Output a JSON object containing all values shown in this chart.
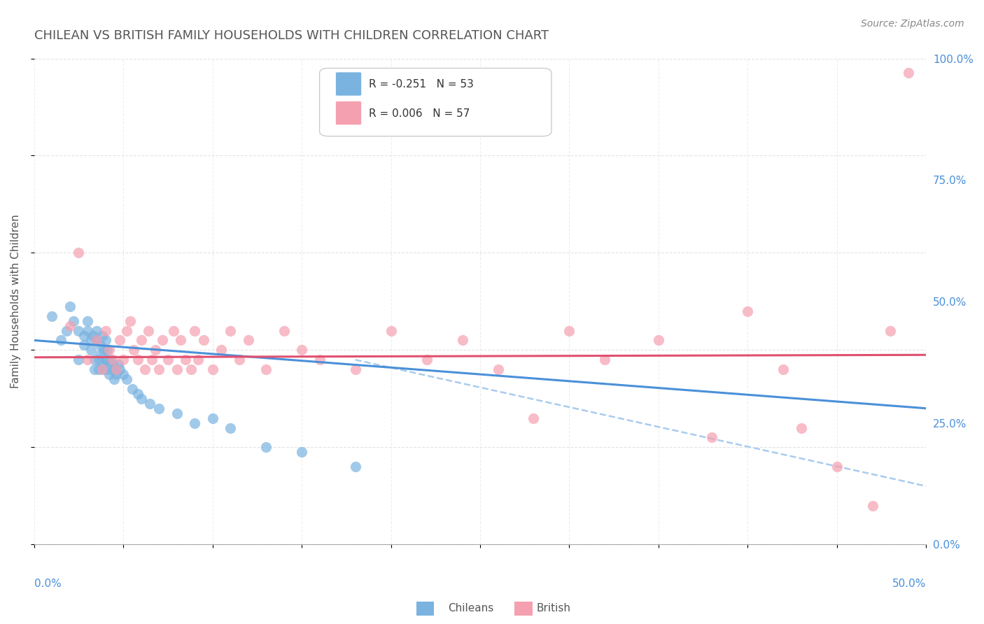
{
  "title": "CHILEAN VS BRITISH FAMILY HOUSEHOLDS WITH CHILDREN CORRELATION CHART",
  "source": "Source: ZipAtlas.com",
  "ylabel_ticks": [
    "0.0%",
    "25.0%",
    "50.0%",
    "75.0%",
    "100.0%"
  ],
  "ylabel_label": "Family Households with Children",
  "legend_r_blue": "R = -0.251",
  "legend_n_blue": "N = 53",
  "legend_r_pink": "R = 0.006",
  "legend_n_pink": "N = 57",
  "blue_scatter_x": [
    0.01,
    0.015,
    0.018,
    0.02,
    0.022,
    0.025,
    0.025,
    0.028,
    0.028,
    0.03,
    0.03,
    0.032,
    0.032,
    0.033,
    0.034,
    0.034,
    0.035,
    0.035,
    0.036,
    0.036,
    0.037,
    0.037,
    0.038,
    0.038,
    0.039,
    0.039,
    0.04,
    0.04,
    0.041,
    0.041,
    0.042,
    0.042,
    0.043,
    0.044,
    0.045,
    0.045,
    0.046,
    0.047,
    0.048,
    0.05,
    0.052,
    0.055,
    0.058,
    0.06,
    0.065,
    0.07,
    0.08,
    0.09,
    0.1,
    0.11,
    0.13,
    0.15,
    0.18
  ],
  "blue_scatter_y": [
    0.47,
    0.42,
    0.44,
    0.49,
    0.46,
    0.44,
    0.38,
    0.43,
    0.41,
    0.46,
    0.44,
    0.42,
    0.4,
    0.43,
    0.38,
    0.36,
    0.44,
    0.42,
    0.38,
    0.36,
    0.41,
    0.39,
    0.43,
    0.37,
    0.4,
    0.36,
    0.42,
    0.38,
    0.4,
    0.38,
    0.36,
    0.35,
    0.38,
    0.37,
    0.36,
    0.34,
    0.35,
    0.37,
    0.36,
    0.35,
    0.34,
    0.32,
    0.31,
    0.3,
    0.29,
    0.28,
    0.27,
    0.25,
    0.26,
    0.24,
    0.2,
    0.19,
    0.16
  ],
  "pink_scatter_x": [
    0.02,
    0.025,
    0.03,
    0.035,
    0.038,
    0.04,
    0.042,
    0.044,
    0.046,
    0.048,
    0.05,
    0.052,
    0.054,
    0.056,
    0.058,
    0.06,
    0.062,
    0.064,
    0.066,
    0.068,
    0.07,
    0.072,
    0.075,
    0.078,
    0.08,
    0.082,
    0.085,
    0.088,
    0.09,
    0.092,
    0.095,
    0.1,
    0.105,
    0.11,
    0.115,
    0.12,
    0.13,
    0.14,
    0.15,
    0.16,
    0.18,
    0.2,
    0.22,
    0.24,
    0.26,
    0.28,
    0.3,
    0.32,
    0.35,
    0.38,
    0.4,
    0.42,
    0.43,
    0.45,
    0.47,
    0.48,
    0.49
  ],
  "pink_scatter_y": [
    0.45,
    0.6,
    0.38,
    0.42,
    0.36,
    0.44,
    0.4,
    0.38,
    0.36,
    0.42,
    0.38,
    0.44,
    0.46,
    0.4,
    0.38,
    0.42,
    0.36,
    0.44,
    0.38,
    0.4,
    0.36,
    0.42,
    0.38,
    0.44,
    0.36,
    0.42,
    0.38,
    0.36,
    0.44,
    0.38,
    0.42,
    0.36,
    0.4,
    0.44,
    0.38,
    0.42,
    0.36,
    0.44,
    0.4,
    0.38,
    0.36,
    0.44,
    0.38,
    0.42,
    0.36,
    0.26,
    0.44,
    0.38,
    0.42,
    0.22,
    0.48,
    0.36,
    0.24,
    0.16,
    0.08,
    0.44,
    0.97
  ],
  "blue_line_x": [
    0.0,
    0.5
  ],
  "blue_line_y": [
    0.42,
    0.28
  ],
  "pink_line_x": [
    0.0,
    0.5
  ],
  "pink_line_y": [
    0.385,
    0.39
  ],
  "dash_line_x": [
    0.18,
    0.5
  ],
  "dash_line_y": [
    0.38,
    0.12
  ],
  "blue_color": "#7ab3e0",
  "pink_color": "#f5a0b0",
  "blue_line_color": "#4a90d9",
  "pink_line_color": "#e05070",
  "dash_line_color": "#aaccee",
  "bg_color": "#ffffff",
  "grid_color": "#dddddd",
  "title_color": "#555555",
  "axis_label_color": "#4a90d9",
  "xlim": [
    0.0,
    0.5
  ],
  "ylim": [
    0.0,
    1.0
  ]
}
